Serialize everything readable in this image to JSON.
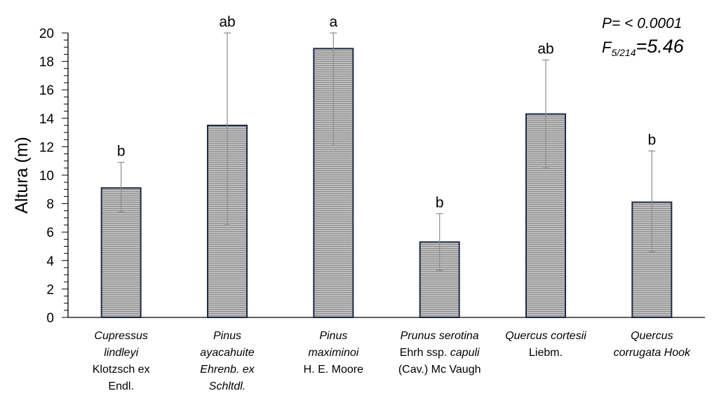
{
  "chart_data": {
    "type": "bar",
    "ylabel": "Altura (m)",
    "ylim": [
      0,
      20
    ],
    "yticks": [
      0,
      2,
      4,
      6,
      8,
      10,
      12,
      14,
      16,
      18,
      20
    ],
    "grid": false,
    "colors": {
      "bar_fill": "#bdbdbd",
      "bar_stripe": "#8a8a8a",
      "bar_edge": "#1f2a44",
      "error_bar": "#8c8c8c"
    },
    "annotation": {
      "p_text": "P= < 0.0001",
      "f_letter": "F",
      "f_sub": "5/214",
      "f_value": "=5.46"
    },
    "categories": [
      {
        "lines": [
          [
            {
              "t": "Cupressus",
              "i": true
            }
          ],
          [
            {
              "t": "lindleyi",
              "i": true
            }
          ],
          [
            {
              "t": "Klotzsch ex",
              "i": false
            }
          ],
          [
            {
              "t": "Endl.",
              "i": false
            }
          ]
        ]
      },
      {
        "lines": [
          [
            {
              "t": "Pinus",
              "i": true
            }
          ],
          [
            {
              "t": "ayacahuite",
              "i": true
            }
          ],
          [
            {
              "t": "Ehrenb. ex",
              "i": true
            }
          ],
          [
            {
              "t": "Schltdl.",
              "i": true
            }
          ]
        ]
      },
      {
        "lines": [
          [
            {
              "t": "Pinus",
              "i": true
            }
          ],
          [
            {
              "t": "maximinoi",
              "i": true
            }
          ],
          [
            {
              "t": "H. E. Moore",
              "i": false
            }
          ]
        ]
      },
      {
        "lines": [
          [
            {
              "t": "Prunus serotina",
              "i": true
            }
          ],
          [
            {
              "t": "Ehrh ssp. ",
              "i": false
            },
            {
              "t": "capuli",
              "i": true
            }
          ],
          [
            {
              "t": "(Cav.) Mc Vaugh",
              "i": false
            }
          ]
        ]
      },
      {
        "lines": [
          [
            {
              "t": "Quercus cortesii",
              "i": true
            }
          ],
          [
            {
              "t": "Liebm.",
              "i": false
            }
          ]
        ]
      },
      {
        "lines": [
          [
            {
              "t": "Quercus",
              "i": true
            }
          ],
          [
            {
              "t": "corrugata Hook",
              "i": true
            }
          ]
        ]
      }
    ],
    "values": [
      9.1,
      13.5,
      18.9,
      5.3,
      14.3,
      8.1
    ],
    "error_low": [
      7.4,
      6.5,
      12.1,
      3.3,
      10.5,
      4.6
    ],
    "error_high": [
      10.9,
      20.0,
      20.0,
      7.3,
      18.1,
      11.7
    ],
    "significance": [
      "b",
      "ab",
      "a",
      "b",
      "ab",
      "b"
    ]
  }
}
